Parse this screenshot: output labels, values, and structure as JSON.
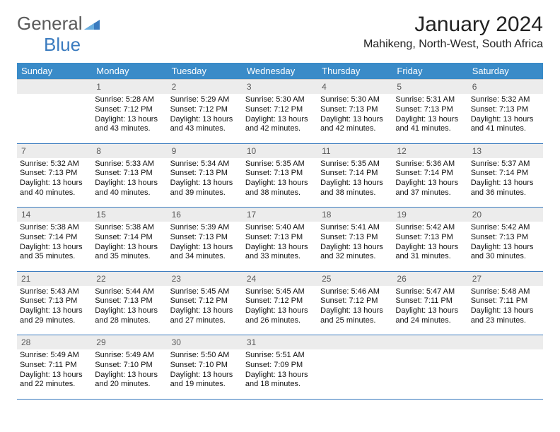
{
  "logo": {
    "text_left": "General",
    "text_right": "Blue"
  },
  "title": "January 2024",
  "location": "Mahikeng, North-West, South Africa",
  "colors": {
    "header_bg": "#3a8bc8",
    "header_text": "#ffffff",
    "date_bg": "#ececec",
    "date_text": "#5a5a5a",
    "divider": "#3a7bbf",
    "body_text": "#111111",
    "logo_gray": "#5a5a5a",
    "logo_blue": "#3a7bbf"
  },
  "day_names": [
    "Sunday",
    "Monday",
    "Tuesday",
    "Wednesday",
    "Thursday",
    "Friday",
    "Saturday"
  ],
  "weeks": [
    [
      {
        "date": "",
        "lines": [
          "",
          "",
          "",
          ""
        ]
      },
      {
        "date": "1",
        "lines": [
          "Sunrise: 5:28 AM",
          "Sunset: 7:12 PM",
          "Daylight: 13 hours",
          "and 43 minutes."
        ]
      },
      {
        "date": "2",
        "lines": [
          "Sunrise: 5:29 AM",
          "Sunset: 7:12 PM",
          "Daylight: 13 hours",
          "and 43 minutes."
        ]
      },
      {
        "date": "3",
        "lines": [
          "Sunrise: 5:30 AM",
          "Sunset: 7:12 PM",
          "Daylight: 13 hours",
          "and 42 minutes."
        ]
      },
      {
        "date": "4",
        "lines": [
          "Sunrise: 5:30 AM",
          "Sunset: 7:13 PM",
          "Daylight: 13 hours",
          "and 42 minutes."
        ]
      },
      {
        "date": "5",
        "lines": [
          "Sunrise: 5:31 AM",
          "Sunset: 7:13 PM",
          "Daylight: 13 hours",
          "and 41 minutes."
        ]
      },
      {
        "date": "6",
        "lines": [
          "Sunrise: 5:32 AM",
          "Sunset: 7:13 PM",
          "Daylight: 13 hours",
          "and 41 minutes."
        ]
      }
    ],
    [
      {
        "date": "7",
        "lines": [
          "Sunrise: 5:32 AM",
          "Sunset: 7:13 PM",
          "Daylight: 13 hours",
          "and 40 minutes."
        ]
      },
      {
        "date": "8",
        "lines": [
          "Sunrise: 5:33 AM",
          "Sunset: 7:13 PM",
          "Daylight: 13 hours",
          "and 40 minutes."
        ]
      },
      {
        "date": "9",
        "lines": [
          "Sunrise: 5:34 AM",
          "Sunset: 7:13 PM",
          "Daylight: 13 hours",
          "and 39 minutes."
        ]
      },
      {
        "date": "10",
        "lines": [
          "Sunrise: 5:35 AM",
          "Sunset: 7:13 PM",
          "Daylight: 13 hours",
          "and 38 minutes."
        ]
      },
      {
        "date": "11",
        "lines": [
          "Sunrise: 5:35 AM",
          "Sunset: 7:14 PM",
          "Daylight: 13 hours",
          "and 38 minutes."
        ]
      },
      {
        "date": "12",
        "lines": [
          "Sunrise: 5:36 AM",
          "Sunset: 7:14 PM",
          "Daylight: 13 hours",
          "and 37 minutes."
        ]
      },
      {
        "date": "13",
        "lines": [
          "Sunrise: 5:37 AM",
          "Sunset: 7:14 PM",
          "Daylight: 13 hours",
          "and 36 minutes."
        ]
      }
    ],
    [
      {
        "date": "14",
        "lines": [
          "Sunrise: 5:38 AM",
          "Sunset: 7:14 PM",
          "Daylight: 13 hours",
          "and 35 minutes."
        ]
      },
      {
        "date": "15",
        "lines": [
          "Sunrise: 5:38 AM",
          "Sunset: 7:14 PM",
          "Daylight: 13 hours",
          "and 35 minutes."
        ]
      },
      {
        "date": "16",
        "lines": [
          "Sunrise: 5:39 AM",
          "Sunset: 7:13 PM",
          "Daylight: 13 hours",
          "and 34 minutes."
        ]
      },
      {
        "date": "17",
        "lines": [
          "Sunrise: 5:40 AM",
          "Sunset: 7:13 PM",
          "Daylight: 13 hours",
          "and 33 minutes."
        ]
      },
      {
        "date": "18",
        "lines": [
          "Sunrise: 5:41 AM",
          "Sunset: 7:13 PM",
          "Daylight: 13 hours",
          "and 32 minutes."
        ]
      },
      {
        "date": "19",
        "lines": [
          "Sunrise: 5:42 AM",
          "Sunset: 7:13 PM",
          "Daylight: 13 hours",
          "and 31 minutes."
        ]
      },
      {
        "date": "20",
        "lines": [
          "Sunrise: 5:42 AM",
          "Sunset: 7:13 PM",
          "Daylight: 13 hours",
          "and 30 minutes."
        ]
      }
    ],
    [
      {
        "date": "21",
        "lines": [
          "Sunrise: 5:43 AM",
          "Sunset: 7:13 PM",
          "Daylight: 13 hours",
          "and 29 minutes."
        ]
      },
      {
        "date": "22",
        "lines": [
          "Sunrise: 5:44 AM",
          "Sunset: 7:13 PM",
          "Daylight: 13 hours",
          "and 28 minutes."
        ]
      },
      {
        "date": "23",
        "lines": [
          "Sunrise: 5:45 AM",
          "Sunset: 7:12 PM",
          "Daylight: 13 hours",
          "and 27 minutes."
        ]
      },
      {
        "date": "24",
        "lines": [
          "Sunrise: 5:45 AM",
          "Sunset: 7:12 PM",
          "Daylight: 13 hours",
          "and 26 minutes."
        ]
      },
      {
        "date": "25",
        "lines": [
          "Sunrise: 5:46 AM",
          "Sunset: 7:12 PM",
          "Daylight: 13 hours",
          "and 25 minutes."
        ]
      },
      {
        "date": "26",
        "lines": [
          "Sunrise: 5:47 AM",
          "Sunset: 7:11 PM",
          "Daylight: 13 hours",
          "and 24 minutes."
        ]
      },
      {
        "date": "27",
        "lines": [
          "Sunrise: 5:48 AM",
          "Sunset: 7:11 PM",
          "Daylight: 13 hours",
          "and 23 minutes."
        ]
      }
    ],
    [
      {
        "date": "28",
        "lines": [
          "Sunrise: 5:49 AM",
          "Sunset: 7:11 PM",
          "Daylight: 13 hours",
          "and 22 minutes."
        ]
      },
      {
        "date": "29",
        "lines": [
          "Sunrise: 5:49 AM",
          "Sunset: 7:10 PM",
          "Daylight: 13 hours",
          "and 20 minutes."
        ]
      },
      {
        "date": "30",
        "lines": [
          "Sunrise: 5:50 AM",
          "Sunset: 7:10 PM",
          "Daylight: 13 hours",
          "and 19 minutes."
        ]
      },
      {
        "date": "31",
        "lines": [
          "Sunrise: 5:51 AM",
          "Sunset: 7:09 PM",
          "Daylight: 13 hours",
          "and 18 minutes."
        ]
      },
      {
        "date": "",
        "lines": [
          "",
          "",
          "",
          ""
        ]
      },
      {
        "date": "",
        "lines": [
          "",
          "",
          "",
          ""
        ]
      },
      {
        "date": "",
        "lines": [
          "",
          "",
          "",
          ""
        ]
      }
    ]
  ]
}
